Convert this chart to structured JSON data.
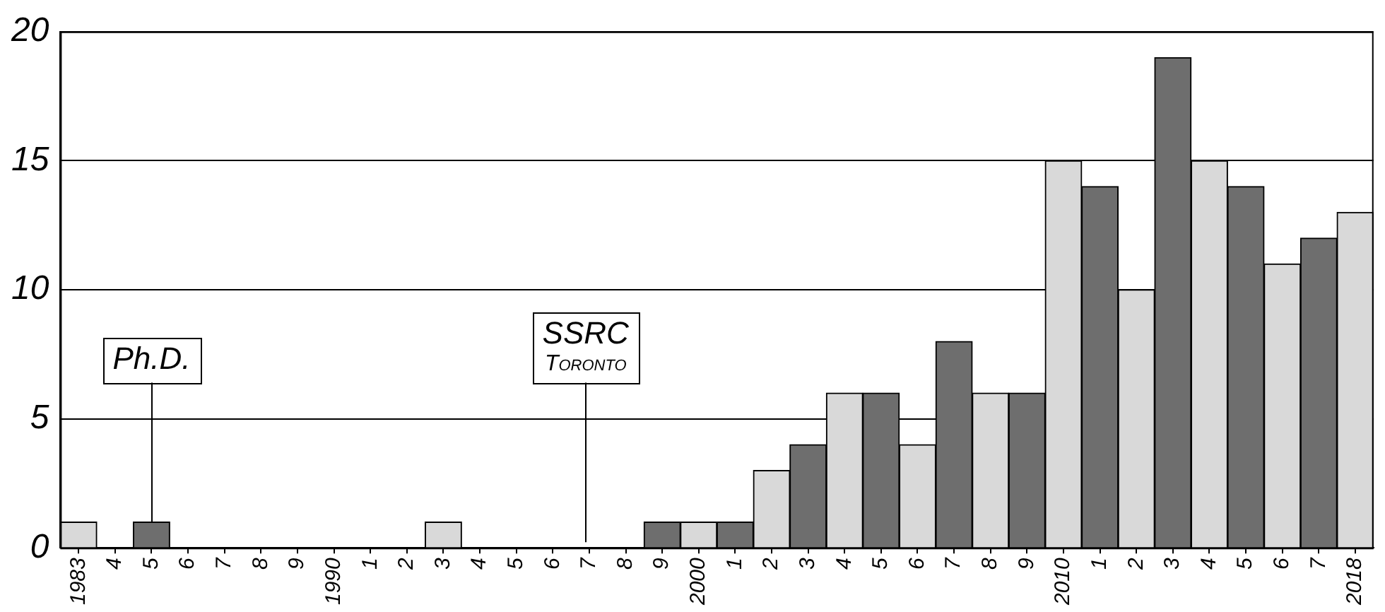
{
  "chart_data": {
    "type": "bar",
    "categories": [
      "1983",
      "4",
      "5",
      "6",
      "7",
      "8",
      "9",
      "1990",
      "1",
      "2",
      "3",
      "4",
      "5",
      "6",
      "7",
      "8",
      "9",
      "2000",
      "1",
      "2",
      "3",
      "4",
      "5",
      "6",
      "7",
      "8",
      "9",
      "2010",
      "1",
      "2",
      "3",
      "4",
      "5",
      "6",
      "7",
      "2018"
    ],
    "values": [
      1,
      null,
      1,
      null,
      0,
      null,
      null,
      null,
      null,
      null,
      1,
      null,
      null,
      null,
      null,
      null,
      1,
      1,
      1,
      3,
      4,
      6,
      6,
      4,
      8,
      6,
      6,
      15,
      14,
      10,
      19,
      15,
      14,
      11,
      12,
      13
    ],
    "colors": [
      "#d9d9d9",
      "#d9d9d9",
      "#6e6e6e",
      "#d9d9d9",
      "#6e6e6e",
      "#d9d9d9",
      "#6e6e6e",
      "#d9d9d9",
      "#6e6e6e",
      "#d9d9d9",
      "#d9d9d9",
      "#d9d9d9",
      "#6e6e6e",
      "#d9d9d9",
      "#6e6e6e",
      "#d9d9d9",
      "#6e6e6e",
      "#d9d9d9",
      "#6e6e6e",
      "#d9d9d9",
      "#6e6e6e",
      "#d9d9d9",
      "#6e6e6e",
      "#d9d9d9",
      "#6e6e6e",
      "#d9d9d9",
      "#6e6e6e",
      "#d9d9d9",
      "#6e6e6e",
      "#d9d9d9",
      "#6e6e6e",
      "#d9d9d9",
      "#6e6e6e",
      "#d9d9d9",
      "#6e6e6e",
      "#d9d9d9"
    ],
    "ylim": [
      0,
      20
    ],
    "yticks": [
      0,
      5,
      10,
      15,
      20
    ],
    "grid": "y",
    "annotations": [
      {
        "text": "Ph.D.",
        "x": "5",
        "y": 1
      },
      "SSRC\nToronto"
    ]
  }
}
